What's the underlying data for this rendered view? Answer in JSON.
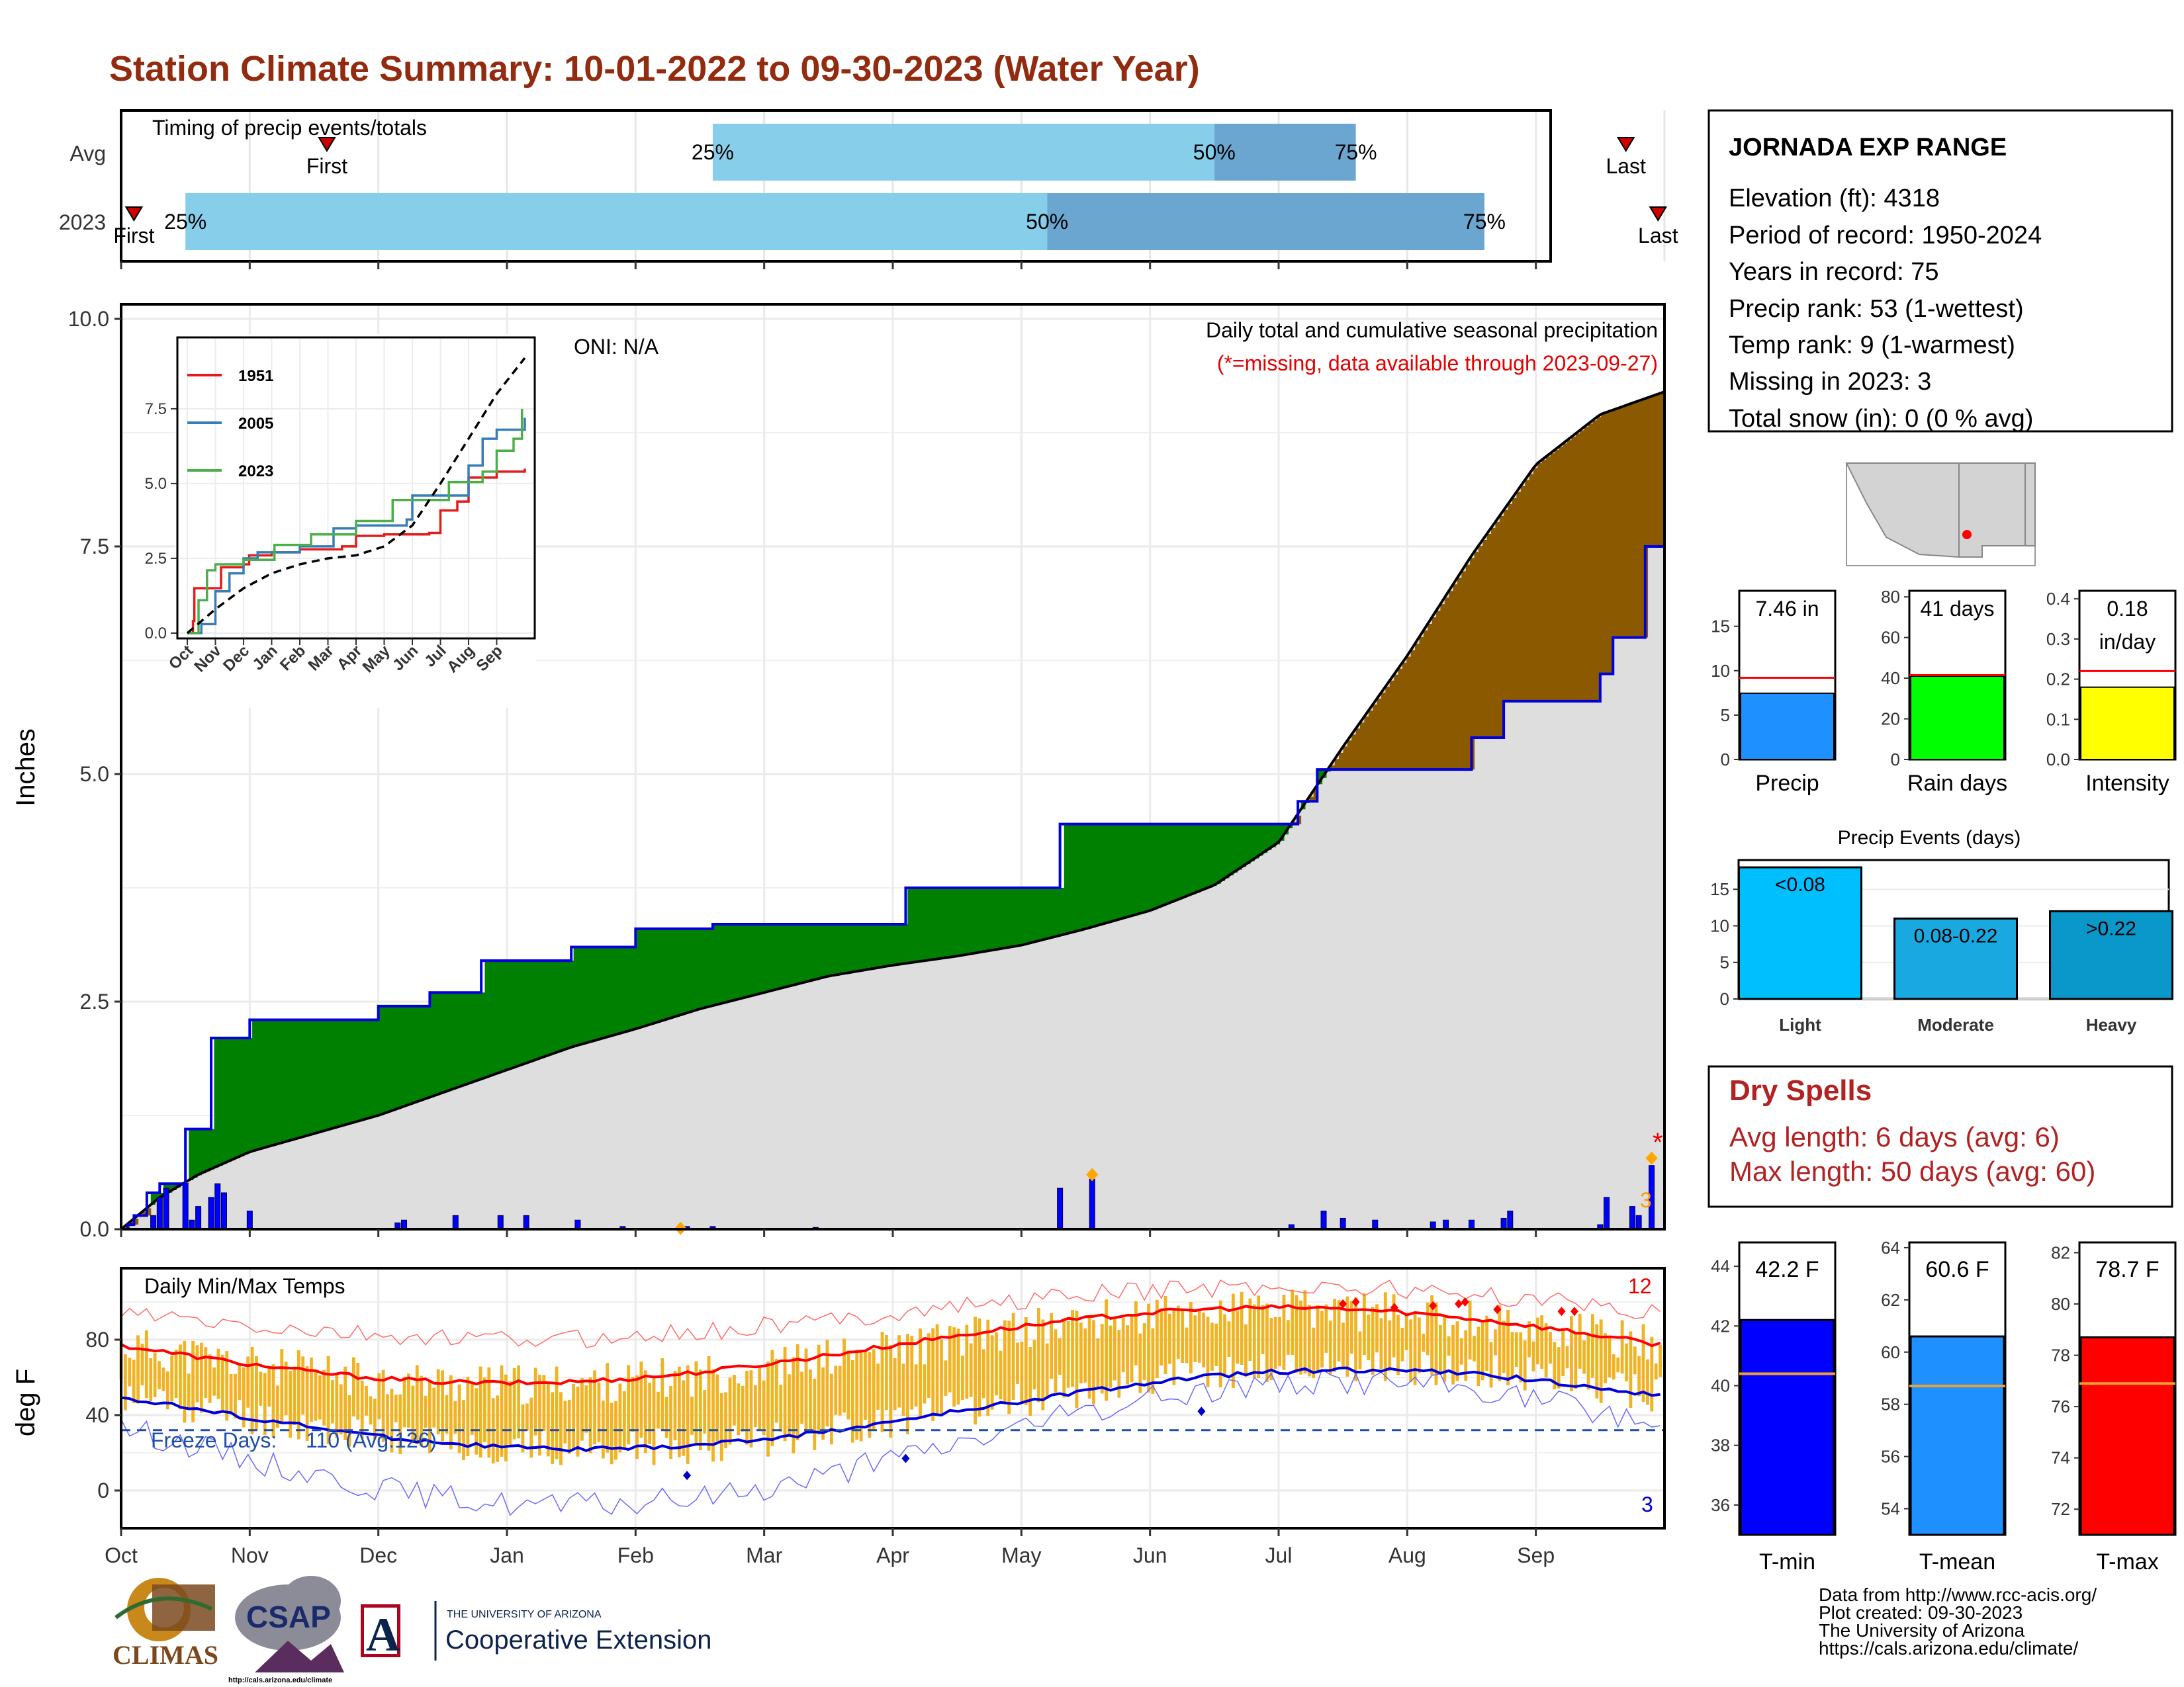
{
  "title": "Station Climate Summary: 10-01-2022 to 09-30-2023 (Water Year)",
  "timing": {
    "label": "Timing of precip events/totals",
    "rows": [
      {
        "name": "Avg",
        "first_label": "First",
        "last_label": "Last",
        "p25_label": "25%",
        "p50_label": "50%",
        "p75_label": "75%",
        "first_month": 1.6,
        "p25_month": 4.6,
        "p50_month": 8.5,
        "p75_month": 9.6,
        "last_month": 11.7
      },
      {
        "name": "2023",
        "first_label": "First",
        "last_label": "Last",
        "p25_label": "25%",
        "p50_label": "50%",
        "p75_label": "75%",
        "first_month": 0.1,
        "p25_month": 0.5,
        "p50_month": 7.2,
        "p75_month": 10.6,
        "last_month": 11.95
      }
    ],
    "colors": {
      "light": "#87ceeb",
      "dark": "#6ba6d0",
      "marker": "#cc0000"
    }
  },
  "chart_data": [
    {
      "type": "area",
      "name": "precip",
      "subtitle": "Daily total and cumulative seasonal precipitation",
      "note": "(*=missing, data available through 2023-09-27)",
      "oni": "ONI: N/A",
      "ylabel": "Inches",
      "ylim": [
        0,
        10
      ],
      "yticks": [
        "0.0",
        "2.5",
        "5.0",
        "7.5",
        "10.0"
      ],
      "xticks": [
        "Oct",
        "Nov",
        "Dec",
        "Jan",
        "Feb",
        "Mar",
        "Apr",
        "May",
        "Jun",
        "Jul",
        "Aug",
        "Sep"
      ],
      "missing_count": "3",
      "avg_cumulative": {
        "x_month": [
          0,
          0.3,
          0.6,
          1,
          1.5,
          2,
          2.5,
          3,
          3.5,
          4,
          4.5,
          5,
          5.5,
          6,
          6.5,
          7,
          7.5,
          8,
          8.5,
          9,
          9.5,
          10,
          10.5,
          11,
          11.5,
          12
        ],
        "y": [
          0,
          0.35,
          0.6,
          0.85,
          1.05,
          1.25,
          1.5,
          1.75,
          2.0,
          2.2,
          2.42,
          2.6,
          2.78,
          2.9,
          3.0,
          3.12,
          3.3,
          3.5,
          3.78,
          4.25,
          5.3,
          6.3,
          7.4,
          8.4,
          8.95,
          9.2
        ]
      },
      "obs_cumulative": {
        "x_month": [
          0,
          0.05,
          0.1,
          0.2,
          0.3,
          0.5,
          0.7,
          0.9,
          1.0,
          1.3,
          1.7,
          2.0,
          2.15,
          2.4,
          2.6,
          2.8,
          3.1,
          3.5,
          3.6,
          4.0,
          4.4,
          4.6,
          4.9,
          5.3,
          5.6,
          6.1,
          6.6,
          7.3,
          7.5,
          8.5,
          9.0,
          9.15,
          9.3,
          9.4,
          9.7,
          10.1,
          10.3,
          10.5,
          10.75,
          10.95,
          11.3,
          11.5,
          11.6,
          11.75,
          11.85,
          12
        ],
        "y": [
          0,
          0.05,
          0.15,
          0.4,
          0.5,
          1.1,
          2.1,
          2.1,
          2.3,
          2.3,
          2.3,
          2.45,
          2.45,
          2.6,
          2.6,
          2.95,
          2.95,
          3.1,
          3.1,
          3.3,
          3.3,
          3.35,
          3.35,
          3.35,
          3.35,
          3.75,
          3.75,
          4.45,
          4.45,
          4.45,
          4.45,
          4.7,
          5.05,
          5.05,
          5.05,
          5.05,
          5.05,
          5.4,
          5.8,
          5.8,
          5.8,
          6.1,
          6.5,
          6.5,
          7.5,
          7.5
        ]
      },
      "daily_precip": [
        {
          "x": 0.25,
          "y": 0.15
        },
        {
          "x": 0.3,
          "y": 0.35
        },
        {
          "x": 0.35,
          "y": 0.45
        },
        {
          "x": 0.5,
          "y": 0.5
        },
        {
          "x": 0.55,
          "y": 0.1
        },
        {
          "x": 0.6,
          "y": 0.25
        },
        {
          "x": 0.7,
          "y": 0.35
        },
        {
          "x": 0.75,
          "y": 0.5
        },
        {
          "x": 0.8,
          "y": 0.4
        },
        {
          "x": 1.0,
          "y": 0.2
        },
        {
          "x": 2.15,
          "y": 0.07
        },
        {
          "x": 2.2,
          "y": 0.1
        },
        {
          "x": 2.6,
          "y": 0.15
        },
        {
          "x": 2.95,
          "y": 0.15
        },
        {
          "x": 3.15,
          "y": 0.15
        },
        {
          "x": 3.55,
          "y": 0.1
        },
        {
          "x": 3.9,
          "y": 0.03
        },
        {
          "x": 4.4,
          "y": 0.03
        },
        {
          "x": 4.6,
          "y": 0.03
        },
        {
          "x": 5.4,
          "y": 0.02
        },
        {
          "x": 7.3,
          "y": 0.45
        },
        {
          "x": 7.55,
          "y": 0.55
        },
        {
          "x": 9.1,
          "y": 0.05
        },
        {
          "x": 9.35,
          "y": 0.2
        },
        {
          "x": 9.5,
          "y": 0.12
        },
        {
          "x": 9.75,
          "y": 0.1
        },
        {
          "x": 10.2,
          "y": 0.08
        },
        {
          "x": 10.3,
          "y": 0.1
        },
        {
          "x": 10.5,
          "y": 0.1
        },
        {
          "x": 10.75,
          "y": 0.12
        },
        {
          "x": 10.8,
          "y": 0.2
        },
        {
          "x": 11.5,
          "y": 0.05
        },
        {
          "x": 11.55,
          "y": 0.35
        },
        {
          "x": 11.75,
          "y": 0.25
        },
        {
          "x": 11.8,
          "y": 0.15
        },
        {
          "x": 11.9,
          "y": 0.7
        }
      ],
      "colors": {
        "below_avg": "#008000",
        "above_avg": "#8b5a00",
        "avg_fill": "#dedede",
        "obs_line": "#0000dd",
        "bars": "#0000ff"
      }
    },
    {
      "type": "line",
      "name": "inset",
      "series": [
        {
          "name": "1951",
          "color": "#e41a1c"
        },
        {
          "name": "2005",
          "color": "#377eb8"
        },
        {
          "name": "2023",
          "color": "#4daf4a"
        }
      ],
      "yticks": [
        "0.0",
        "2.5",
        "5.0",
        "7.5"
      ],
      "xticks": [
        "Oct",
        "Nov",
        "Dec",
        "Jan",
        "Feb",
        "Mar",
        "Apr",
        "May",
        "Jun",
        "Jul",
        "Aug",
        "Sep"
      ]
    },
    {
      "type": "line",
      "name": "temps",
      "subtitle": "Daily Min/Max Temps",
      "ylabel": "deg F",
      "ylim": [
        -20,
        110
      ],
      "yticks": [
        "0",
        "40",
        "80"
      ],
      "freeze_label": "Freeze Days:",
      "freeze_value": "110 (Avg:126)",
      "max_count": "12",
      "min_count": "3",
      "xticks": [
        "Oct",
        "Nov",
        "Dec",
        "Jan",
        "Feb",
        "Mar",
        "Apr",
        "May",
        "Jun",
        "Jul",
        "Aug",
        "Sep"
      ],
      "colors": {
        "bars": "#f0b323",
        "max_avg": "#ff0000",
        "min_avg": "#0000dd",
        "freeze": "#1f4fa8"
      }
    },
    {
      "type": "bar",
      "name": "precip_stats",
      "categories": [
        "Precip",
        "Rain days",
        "Intensity"
      ],
      "values": [
        7.46,
        41,
        0.18
      ],
      "averages": [
        9.2,
        41.5,
        0.22
      ],
      "labels": [
        "7.46 in",
        "41 days",
        "0.18\nin/day"
      ],
      "label_line1": [
        "7.46 in",
        "41 days",
        "0.18"
      ],
      "label_line2": [
        "",
        "",
        "in/day"
      ],
      "yticks": [
        [
          "0",
          "5",
          "10",
          "15"
        ],
        [
          "0",
          "20",
          "40",
          "60",
          "80"
        ],
        [
          "0.0",
          "0.1",
          "0.2",
          "0.3",
          "0.4"
        ]
      ],
      "colors": [
        "#1e90ff",
        "#00ff00",
        "#ffff00"
      ]
    },
    {
      "type": "bar",
      "name": "events",
      "title": "Precip Events (days)",
      "categories": [
        "Light",
        "Moderate",
        "Heavy"
      ],
      "bar_labels": [
        "<0.08",
        "0.08-0.22",
        ">0.22"
      ],
      "values": [
        18,
        11,
        12
      ],
      "yticks": [
        "0",
        "5",
        "10",
        "15"
      ],
      "colors": [
        "#00bfff",
        "#19a8e0",
        "#0a97c9"
      ]
    },
    {
      "type": "bar",
      "name": "temp_stats",
      "categories": [
        "T-min",
        "T-mean",
        "T-max"
      ],
      "values": [
        42.2,
        60.6,
        78.7
      ],
      "averages": [
        40.4,
        58.7,
        76.9
      ],
      "labels": [
        "42.2 F",
        "60.6 F",
        "78.7 F"
      ],
      "yticks": [
        [
          "36",
          "38",
          "40",
          "42",
          "44"
        ],
        [
          "54",
          "56",
          "58",
          "60",
          "62",
          "64"
        ],
        [
          "72",
          "74",
          "76",
          "78",
          "80",
          "82"
        ]
      ],
      "colors": [
        "#0000ff",
        "#1e90ff",
        "#ff0000"
      ]
    }
  ],
  "station": {
    "name": "JORNADA EXP RANGE",
    "lines": [
      "Elevation (ft): 4318",
      "Period of record: 1950-2024",
      "Years in record: 75",
      "Precip rank: 53 (1-wettest)",
      "Temp rank: 9 (1-warmest)",
      "Missing in 2023: 3",
      "Total snow (in): 0 (0 % avg)"
    ]
  },
  "dry_spells": {
    "title": "Dry Spells",
    "avg": "Avg length: 6 days (avg: 6)",
    "max": "Max length: 50 days (avg: 60)"
  },
  "footer": {
    "lines": [
      "Data from http://www.rcc-acis.org/",
      "Plot created: 09-30-2023",
      "The University of Arizona",
      "https://cals.arizona.edu/climate/"
    ]
  },
  "logos": {
    "climas": "CLIMAS",
    "csap": "CSAP",
    "csap_url": "http://cals.arizona.edu/climate",
    "ua_small": "THE UNIVERSITY OF ARIZONA",
    "ua_big": "Cooperative Extension",
    "ua_mark": "A"
  }
}
